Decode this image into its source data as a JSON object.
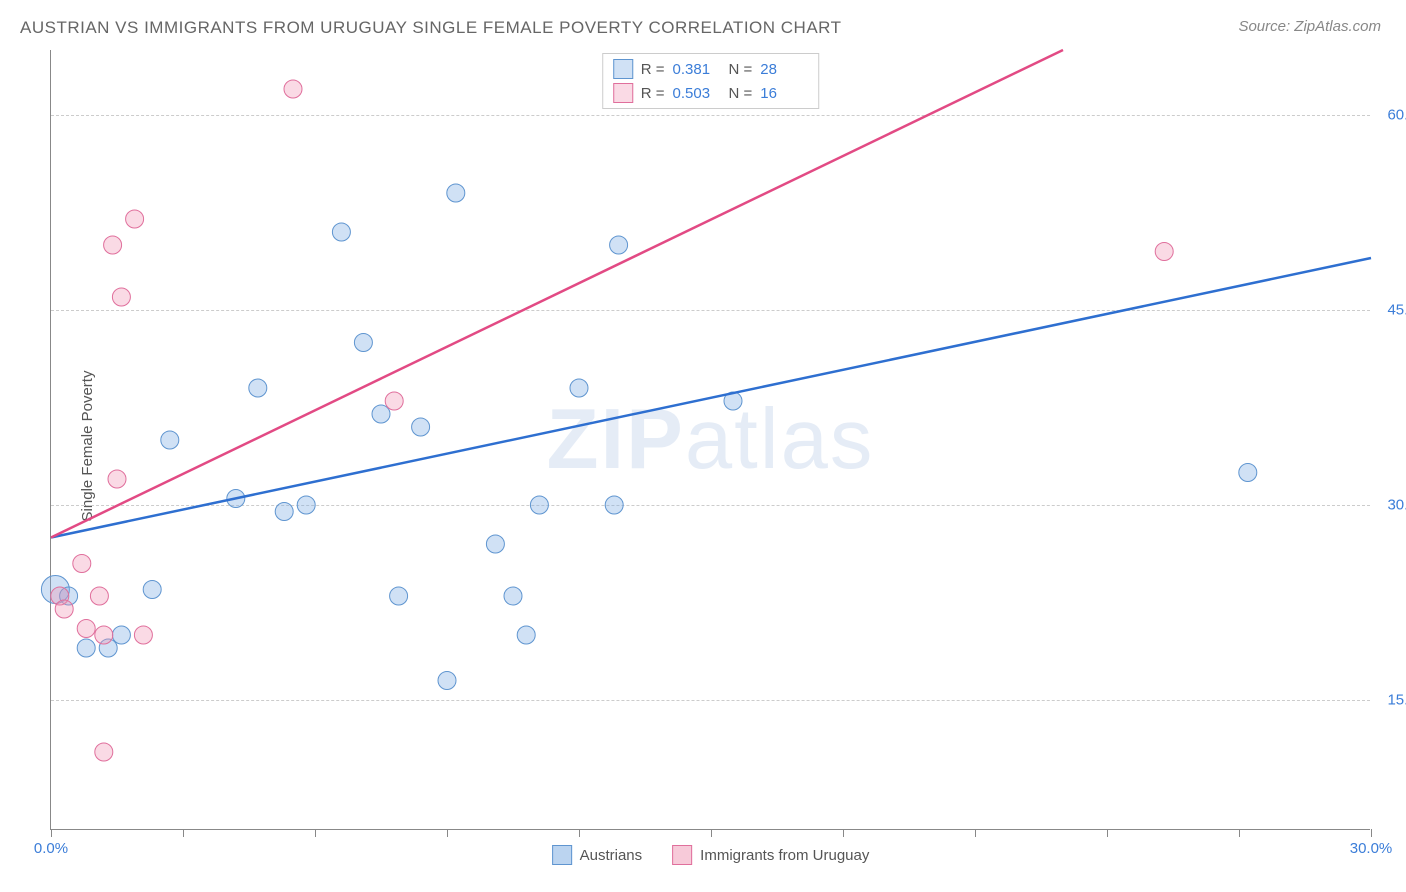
{
  "title": "AUSTRIAN VS IMMIGRANTS FROM URUGUAY SINGLE FEMALE POVERTY CORRELATION CHART",
  "source": "Source: ZipAtlas.com",
  "y_axis_label": "Single Female Poverty",
  "watermark_bold": "ZIP",
  "watermark_thin": "atlas",
  "chart": {
    "type": "scatter",
    "xlim": [
      0,
      30
    ],
    "ylim": [
      5,
      65
    ],
    "x_ticks": [
      0,
      3,
      6,
      9,
      12,
      15,
      18,
      21,
      24,
      27,
      30
    ],
    "x_tick_labels": {
      "0": "0.0%",
      "30": "30.0%"
    },
    "y_grid": [
      15,
      30,
      45,
      60
    ],
    "y_tick_labels": {
      "15": "15.0%",
      "30": "30.0%",
      "45": "45.0%",
      "60": "60.0%"
    },
    "background_color": "#ffffff",
    "grid_color": "#cccccc",
    "axis_color": "#888888",
    "label_color": "#3b7dd8",
    "series": [
      {
        "name": "Austrians",
        "fill": "rgba(120,170,225,0.35)",
        "stroke": "#5f95d0",
        "stroke_width": 1,
        "line_color": "#2e6fd0",
        "line_width": 2.5,
        "line": {
          "x1": 0,
          "y1": 27.5,
          "x2": 30,
          "y2": 49
        },
        "R": "0.381",
        "N": "28",
        "points": [
          {
            "x": 0.1,
            "y": 23.5,
            "r": 14
          },
          {
            "x": 0.4,
            "y": 23,
            "r": 9
          },
          {
            "x": 0.8,
            "y": 19,
            "r": 9
          },
          {
            "x": 1.3,
            "y": 19,
            "r": 9
          },
          {
            "x": 1.6,
            "y": 20,
            "r": 9
          },
          {
            "x": 2.3,
            "y": 23.5,
            "r": 9
          },
          {
            "x": 2.7,
            "y": 35,
            "r": 9
          },
          {
            "x": 4.2,
            "y": 30.5,
            "r": 9
          },
          {
            "x": 4.7,
            "y": 39,
            "r": 9
          },
          {
            "x": 5.3,
            "y": 29.5,
            "r": 9
          },
          {
            "x": 5.8,
            "y": 30,
            "r": 9
          },
          {
            "x": 6.6,
            "y": 51,
            "r": 9
          },
          {
            "x": 7.1,
            "y": 42.5,
            "r": 9
          },
          {
            "x": 7.5,
            "y": 37,
            "r": 9
          },
          {
            "x": 7.9,
            "y": 23,
            "r": 9
          },
          {
            "x": 8.4,
            "y": 36,
            "r": 9
          },
          {
            "x": 9.0,
            "y": 16.5,
            "r": 9
          },
          {
            "x": 9.2,
            "y": 54,
            "r": 9
          },
          {
            "x": 10.1,
            "y": 27,
            "r": 9
          },
          {
            "x": 10.5,
            "y": 23,
            "r": 9
          },
          {
            "x": 10.8,
            "y": 20,
            "r": 9
          },
          {
            "x": 11.1,
            "y": 30,
            "r": 9
          },
          {
            "x": 12.0,
            "y": 39,
            "r": 9
          },
          {
            "x": 12.8,
            "y": 30,
            "r": 9
          },
          {
            "x": 12.9,
            "y": 50,
            "r": 9
          },
          {
            "x": 15.5,
            "y": 38,
            "r": 9
          },
          {
            "x": 27.2,
            "y": 32.5,
            "r": 9
          }
        ]
      },
      {
        "name": "Immigrants from Uruguay",
        "fill": "rgba(240,150,180,0.35)",
        "stroke": "#e06f9c",
        "stroke_width": 1,
        "line_color": "#e24a84",
        "line_width": 2.5,
        "line": {
          "x1": 0,
          "y1": 27.5,
          "x2": 23,
          "y2": 65
        },
        "R": "0.503",
        "N": "16",
        "points": [
          {
            "x": 0.2,
            "y": 23,
            "r": 9
          },
          {
            "x": 0.3,
            "y": 22,
            "r": 9
          },
          {
            "x": 0.7,
            "y": 25.5,
            "r": 9
          },
          {
            "x": 0.8,
            "y": 20.5,
            "r": 9
          },
          {
            "x": 1.1,
            "y": 23,
            "r": 9
          },
          {
            "x": 1.2,
            "y": 20,
            "r": 9
          },
          {
            "x": 1.2,
            "y": 11,
            "r": 9
          },
          {
            "x": 1.5,
            "y": 32,
            "r": 9
          },
          {
            "x": 1.4,
            "y": 50,
            "r": 9
          },
          {
            "x": 1.6,
            "y": 46,
            "r": 9
          },
          {
            "x": 1.9,
            "y": 52,
            "r": 9
          },
          {
            "x": 2.1,
            "y": 20,
            "r": 9
          },
          {
            "x": 5.5,
            "y": 62,
            "r": 9
          },
          {
            "x": 7.8,
            "y": 38,
            "r": 9
          },
          {
            "x": 25.3,
            "y": 49.5,
            "r": 9
          }
        ]
      }
    ]
  },
  "legend_bottom": [
    {
      "label": "Austrians",
      "fill": "rgba(120,170,225,0.5)",
      "stroke": "#5f95d0"
    },
    {
      "label": "Immigrants from Uruguay",
      "fill": "rgba(240,150,180,0.5)",
      "stroke": "#e06f9c"
    }
  ],
  "legend_stats_labels": {
    "R": "R  =",
    "N": "N  ="
  }
}
